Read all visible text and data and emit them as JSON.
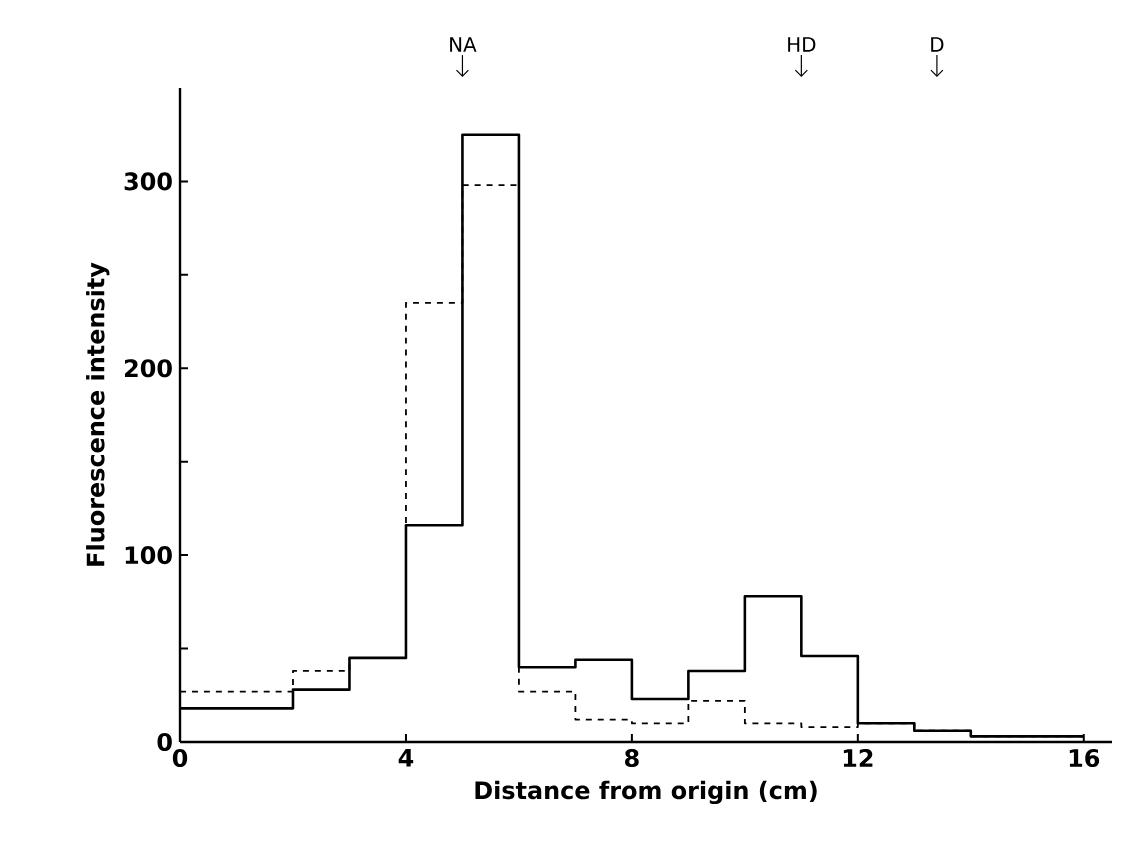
{
  "chart_data": {
    "type": "step",
    "xlabel": "Distance from origin (cm)",
    "ylabel": "Fluorescence intensity",
    "x": [
      0,
      2,
      3,
      4,
      5,
      6,
      7,
      8,
      9,
      10,
      11,
      12,
      13,
      14,
      16
    ],
    "series": [
      {
        "color": "#000000",
        "line_style": "solid",
        "values": [
          18,
          28,
          45,
          116,
          325,
          40,
          44,
          23,
          38,
          78,
          46,
          10,
          6,
          3,
          3
        ]
      },
      {
        "color": "#000000",
        "line_style": "dashed",
        "values": [
          27,
          38,
          45,
          235,
          298,
          27,
          12,
          10,
          22,
          10,
          8,
          10,
          6,
          3,
          3
        ]
      }
    ],
    "xlim": [
      0,
      16.5
    ],
    "ylim": [
      0,
      350
    ],
    "xticks": [
      0,
      4,
      8,
      12,
      16
    ],
    "yticks": [
      0,
      {
        "value": 50,
        "label": null
      },
      100,
      {
        "value": 150,
        "label": null
      },
      200,
      {
        "value": 250,
        "label": null
      },
      300
    ],
    "ref_lines": [
      {
        "axis": "x",
        "value": 5,
        "label": "NA"
      },
      {
        "axis": "x",
        "value": 11,
        "label": "HD"
      },
      {
        "axis": "x",
        "value": 13.4,
        "label": "D"
      }
    ]
  }
}
